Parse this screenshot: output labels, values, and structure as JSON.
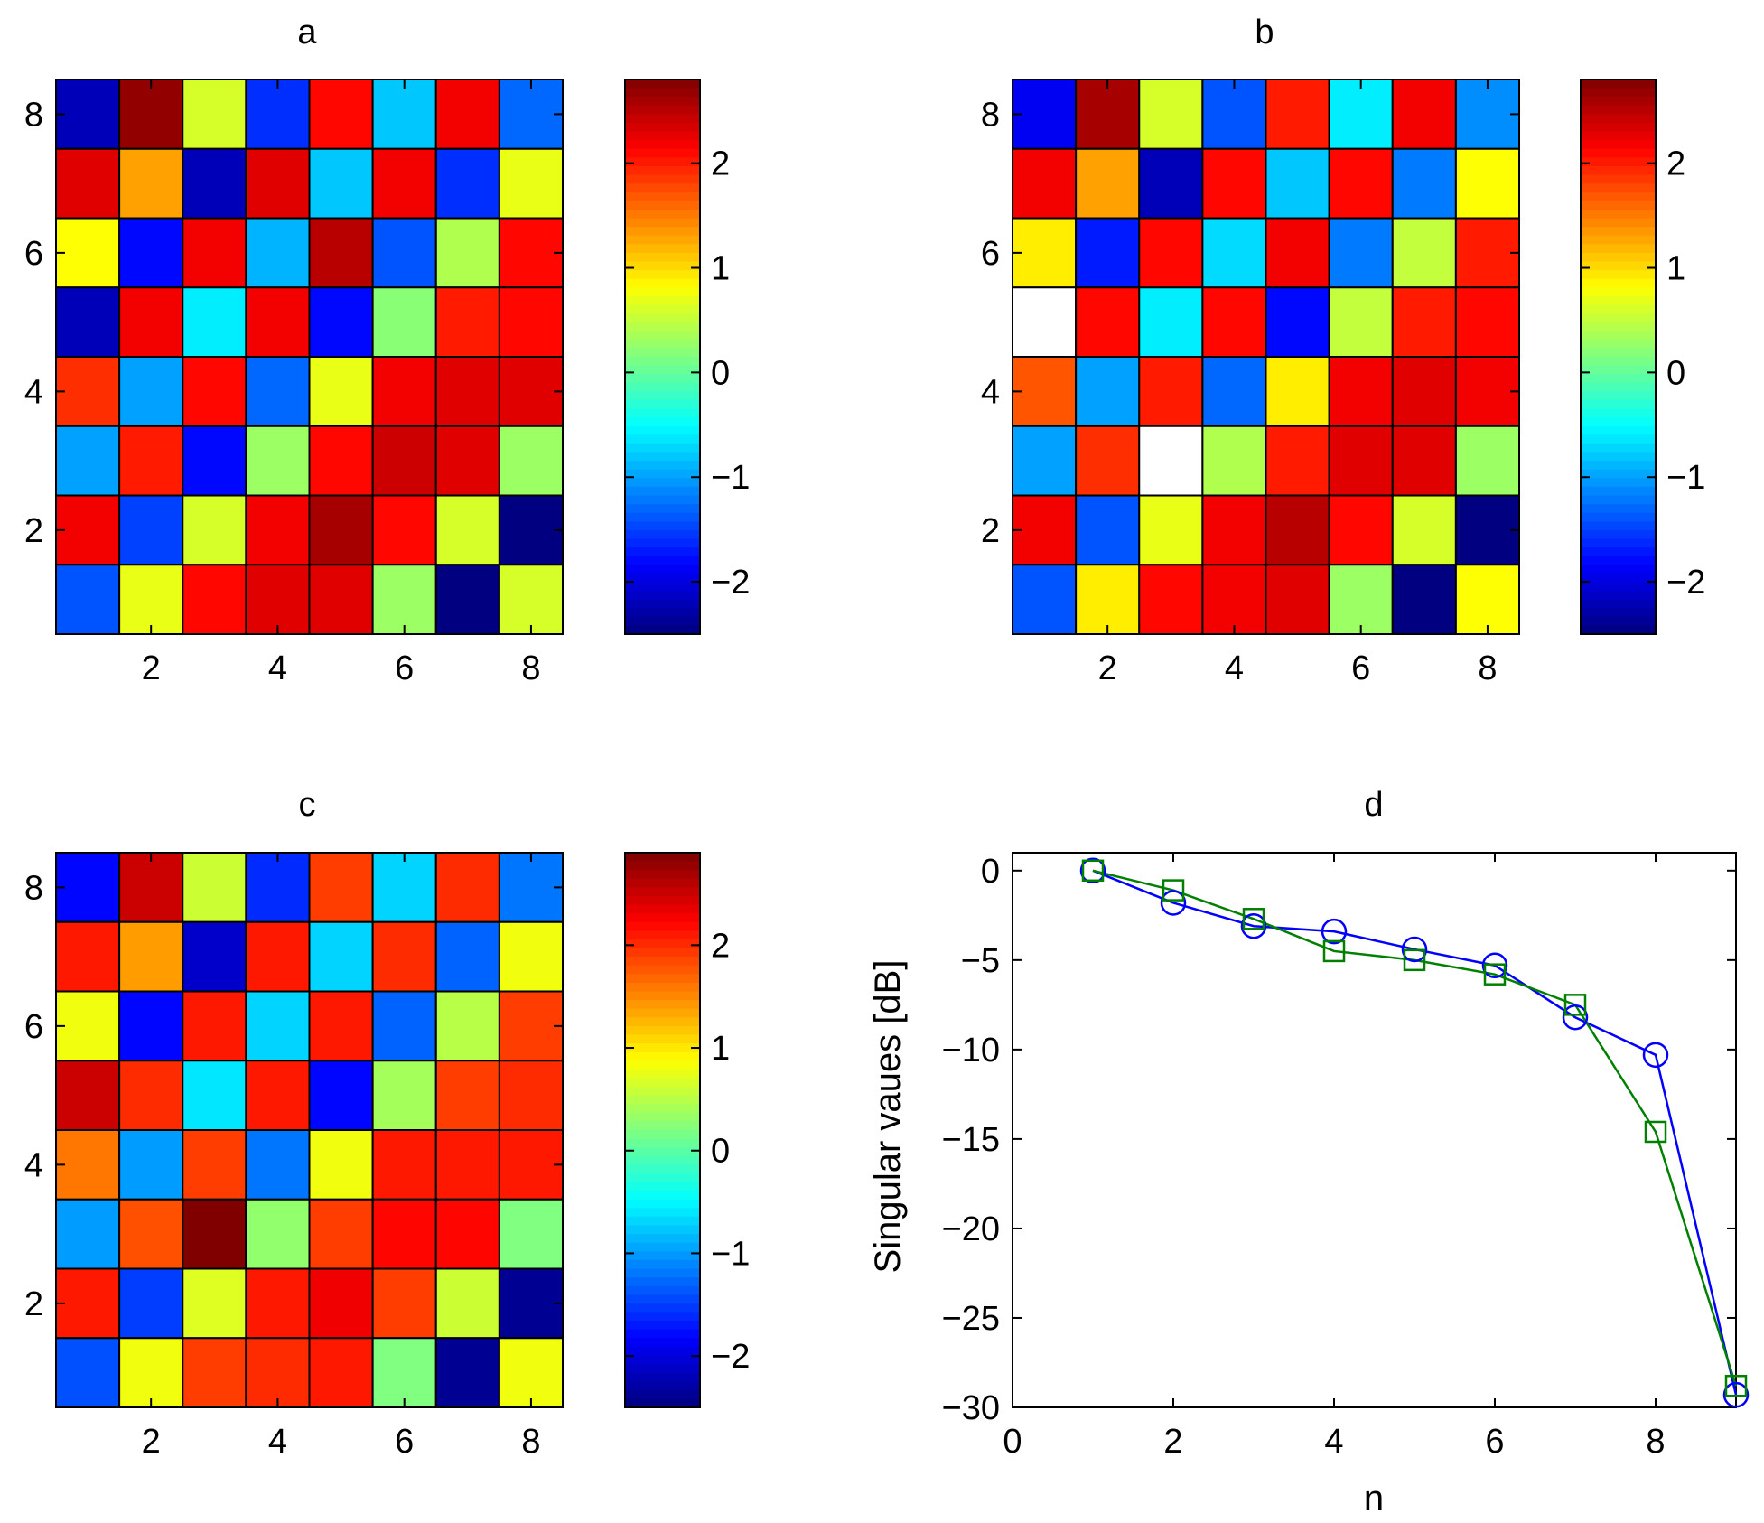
{
  "figure": {
    "panels": [
      "a",
      "b",
      "c",
      "d"
    ]
  },
  "colormap": "jet",
  "chart_data": [
    {
      "type": "heatmap",
      "panel": "a",
      "title": "a",
      "rows_top_to_bottom": [
        [
          -2.2,
          2.7,
          0.6,
          -1.6,
          2.1,
          -0.8,
          2.2,
          -1.3
        ],
        [
          2.3,
          1.3,
          -2.2,
          2.3,
          -0.8,
          2.2,
          -1.6,
          0.7
        ],
        [
          0.8,
          -1.8,
          2.2,
          -0.9,
          2.5,
          -1.4,
          0.4,
          2.1
        ],
        [
          -2.2,
          2.2,
          -0.6,
          2.2,
          -1.8,
          0.2,
          2.0,
          2.1
        ],
        [
          1.9,
          -1.0,
          2.1,
          -1.3,
          0.7,
          2.2,
          2.3,
          2.3
        ],
        [
          -1.0,
          2.0,
          -1.8,
          0.3,
          2.1,
          2.4,
          2.3,
          0.3
        ],
        [
          2.2,
          -1.5,
          0.6,
          2.2,
          2.6,
          2.1,
          0.6,
          -2.5
        ],
        [
          -1.4,
          0.7,
          2.1,
          2.3,
          2.3,
          0.3,
          -2.5,
          0.6
        ]
      ],
      "xlim": [
        0.5,
        8.5
      ],
      "ylim": [
        0.5,
        8.5
      ],
      "xticks": [
        "2",
        "4",
        "6",
        "8"
      ],
      "yticks": [
        "2",
        "4",
        "6",
        "8"
      ],
      "clim": [
        -2.5,
        2.8
      ],
      "colorbar_ticks": [
        "−2",
        "−1",
        "0",
        "1",
        "2"
      ]
    },
    {
      "type": "heatmap",
      "panel": "b",
      "title": "b",
      "rows_top_to_bottom": [
        [
          -1.9,
          2.6,
          0.6,
          -1.4,
          2.0,
          -0.6,
          2.2,
          -1.1
        ],
        [
          2.2,
          1.3,
          -2.2,
          2.1,
          -0.8,
          2.1,
          -1.2,
          0.8
        ],
        [
          0.9,
          -1.7,
          2.1,
          -0.7,
          2.2,
          -1.2,
          0.5,
          2.0
        ],
        [
          null,
          2.1,
          -0.6,
          2.1,
          -1.8,
          0.5,
          2.0,
          2.1
        ],
        [
          1.7,
          -1.0,
          2.0,
          -1.3,
          0.9,
          2.2,
          2.3,
          2.2
        ],
        [
          -1.0,
          1.9,
          null,
          0.4,
          2.0,
          2.3,
          2.3,
          0.3
        ],
        [
          2.2,
          -1.4,
          0.7,
          2.2,
          2.5,
          2.1,
          0.6,
          -2.5
        ],
        [
          -1.4,
          0.9,
          2.1,
          2.2,
          2.3,
          0.3,
          -2.5,
          0.8
        ]
      ],
      "xlim": [
        0.5,
        8.5
      ],
      "ylim": [
        0.5,
        8.5
      ],
      "xticks": [
        "2",
        "4",
        "6",
        "8"
      ],
      "yticks": [
        "2",
        "4",
        "6",
        "8"
      ],
      "clim": [
        -2.5,
        2.8
      ],
      "colorbar_ticks": [
        "−2",
        "−1",
        "0",
        "1",
        "2"
      ]
    },
    {
      "type": "heatmap",
      "panel": "c",
      "title": "c",
      "rows_top_to_bottom": [
        [
          -1.8,
          2.5,
          0.6,
          -1.6,
          1.9,
          -0.7,
          2.0,
          -1.2
        ],
        [
          2.1,
          1.4,
          -2.1,
          2.1,
          -0.7,
          2.0,
          -1.3,
          0.8
        ],
        [
          0.8,
          -1.8,
          2.1,
          -0.7,
          2.1,
          -1.3,
          0.5,
          1.9
        ],
        [
          2.5,
          2.0,
          -0.6,
          2.1,
          -1.8,
          0.4,
          1.9,
          2.0
        ],
        [
          1.6,
          -1.0,
          1.9,
          -1.2,
          0.8,
          2.1,
          2.1,
          2.1
        ],
        [
          -1.0,
          1.8,
          2.9,
          0.3,
          1.9,
          2.2,
          2.2,
          0.2
        ],
        [
          2.1,
          -1.5,
          0.7,
          2.1,
          2.3,
          1.9,
          0.6,
          -2.4
        ],
        [
          -1.4,
          0.8,
          1.9,
          2.0,
          2.1,
          0.2,
          -2.4,
          0.8
        ]
      ],
      "xlim": [
        0.5,
        8.5
      ],
      "ylim": [
        0.5,
        8.5
      ],
      "xticks": [
        "2",
        "4",
        "6",
        "8"
      ],
      "yticks": [
        "2",
        "4",
        "6",
        "8"
      ],
      "clim": [
        -2.5,
        2.9
      ],
      "colorbar_ticks": [
        "−2",
        "−1",
        "0",
        "1",
        "2"
      ]
    },
    {
      "type": "line",
      "panel": "d",
      "title": "d",
      "xlabel": "n",
      "ylabel": "Singular vaues [dB]",
      "xlim": [
        0,
        9
      ],
      "ylim": [
        -30,
        1
      ],
      "xticks": [
        0,
        2,
        4,
        6,
        8
      ],
      "yticks": [
        0,
        -5,
        -10,
        -15,
        -20,
        -25,
        -30
      ],
      "x": [
        1,
        2,
        3,
        4,
        5,
        6,
        7,
        8,
        9
      ],
      "series": [
        {
          "name": "blue-circles",
          "color": "#0000ff",
          "marker": "circle",
          "values": [
            0,
            -1.8,
            -3.1,
            -3.4,
            -4.4,
            -5.3,
            -8.2,
            -10.3,
            -29.3
          ]
        },
        {
          "name": "green-squares",
          "color": "#008000",
          "marker": "square",
          "values": [
            0,
            -1.1,
            -2.7,
            -4.5,
            -5.0,
            -5.8,
            -7.5,
            -14.6,
            -28.8
          ]
        }
      ]
    }
  ]
}
